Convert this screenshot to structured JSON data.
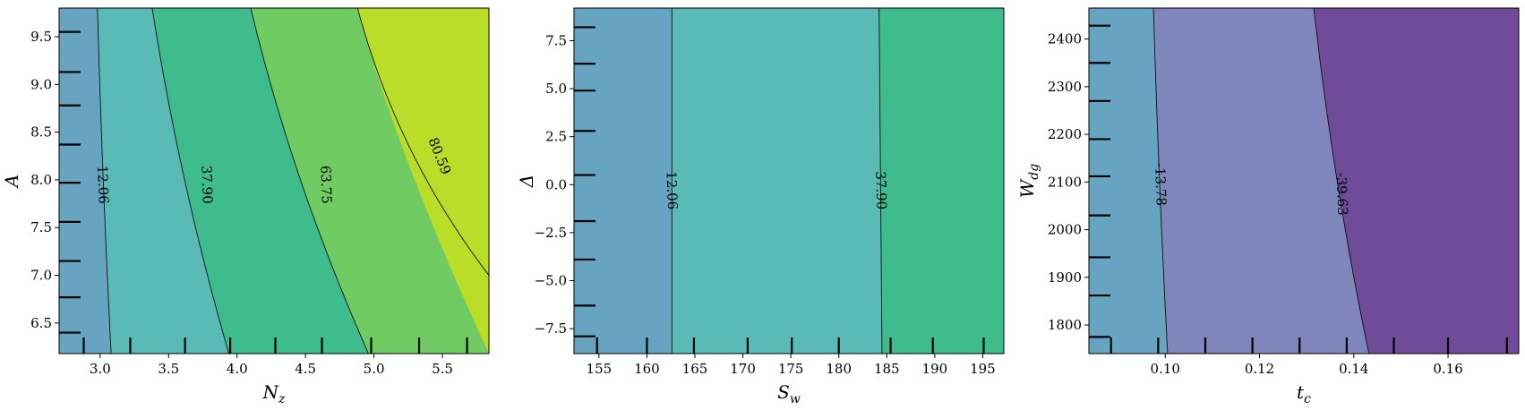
{
  "chart_data": [
    {
      "type": "contour",
      "xlabel": "N_z",
      "ylabel": "A",
      "xlim": [
        2.7,
        5.84
      ],
      "ylim": [
        6.18,
        9.8
      ],
      "xticks": [
        "3.0",
        "3.5",
        "4.0",
        "4.5",
        "5.0",
        "5.5"
      ],
      "yticks": [
        "6.5",
        "7.0",
        "7.5",
        "8.0",
        "8.5",
        "9.0",
        "9.5"
      ],
      "rug_x": [
        2.88,
        3.22,
        3.62,
        3.95,
        4.28,
        4.62,
        4.98,
        5.33,
        5.68
      ],
      "rug_y": [
        6.4,
        6.77,
        7.15,
        7.56,
        7.97,
        8.37,
        8.78,
        9.13,
        9.55
      ],
      "levels": [
        {
          "value": "12.06",
          "color": "#3b8bb0",
          "x_top": 2.98,
          "x_bottom": 3.08
        },
        {
          "value": "37.90",
          "color": "#2aa6a2",
          "x_top": 3.38,
          "x_bottom": 3.94
        },
        {
          "value": "63.75",
          "color": "#37bc82",
          "x_top": 4.1,
          "x_bottom": 4.96
        },
        {
          "value": "80.59",
          "color": "#7fcf57",
          "x_top": 4.88,
          "x_bottom": 5.84,
          "y_end": 7.0
        },
        {
          "value": "",
          "color": "#cfe11a"
        }
      ],
      "label_positions": [
        {
          "text": "12.06",
          "x": 3.02,
          "y": 7.95
        },
        {
          "text": "37.90",
          "x": 3.78,
          "y": 7.95
        },
        {
          "text": "63.75",
          "x": 4.65,
          "y": 7.95
        },
        {
          "text": "80.59",
          "x": 5.48,
          "y": 8.25
        }
      ]
    },
    {
      "type": "contour",
      "xlabel": "S_w",
      "ylabel": "Δ",
      "xlim": [
        152.4,
        197.2
      ],
      "ylim": [
        -8.8,
        9.2
      ],
      "xticks": [
        "155",
        "160",
        "165",
        "170",
        "175",
        "180",
        "185",
        "190",
        "195"
      ],
      "yticks": [
        "−7.5",
        "−5.0",
        "−2.5",
        "0.0",
        "2.5",
        "5.0",
        "7.5"
      ],
      "rug_x": [
        154.8,
        160.0,
        164.9,
        170.5,
        175.1,
        180.0,
        185.4,
        189.8,
        195.1
      ],
      "rug_y": [
        -7.9,
        -6.3,
        -3.9,
        -1.9,
        0.5,
        2.8,
        4.9,
        6.3,
        8.2
      ],
      "levels": [
        {
          "value": "12.06",
          "color": "#3b8bb0",
          "x_top": 162.6,
          "x_bottom": 162.6
        },
        {
          "value": "37.90",
          "color": "#2aa6a2",
          "x_top": 184.2,
          "x_bottom": 184.5
        },
        {
          "value": "",
          "color": "#37bc82"
        }
      ],
      "label_positions": [
        {
          "text": "12.06",
          "x": 162.6,
          "y": -0.3
        },
        {
          "text": "37.90",
          "x": 184.4,
          "y": -0.3
        }
      ]
    },
    {
      "type": "contour",
      "xlabel": "t_c",
      "ylabel": "W_dg",
      "xlim": [
        0.0838,
        0.175
      ],
      "ylim": [
        1740,
        2465
      ],
      "xticks": [
        "0.10",
        "0.12",
        "0.14",
        "0.16"
      ],
      "yticks": [
        "1800",
        "1900",
        "2000",
        "2100",
        "2200",
        "2300",
        "2400"
      ],
      "rug_x": [
        0.0885,
        0.0985,
        0.1085,
        0.1185,
        0.1285,
        0.1385,
        0.1485,
        0.16,
        0.1725
      ],
      "rug_y": [
        1775,
        1862,
        1942,
        2030,
        2112,
        2190,
        2270,
        2350,
        2428
      ],
      "levels": [
        {
          "value": "-13.78",
          "color": "#3b8bb0",
          "x_top": 0.0975,
          "x_bottom": 0.1005
        },
        {
          "value": "-39.63",
          "color": "#5a64a8",
          "x_top": 0.1315,
          "x_bottom": 0.1432
        },
        {
          "value": "",
          "color": "#6a3b8f"
        }
      ],
      "label_positions": [
        {
          "text": "-13.78",
          "x": 0.099,
          "y": 2095
        },
        {
          "text": "-39.63",
          "x": 0.1375,
          "y": 2075
        }
      ]
    }
  ]
}
